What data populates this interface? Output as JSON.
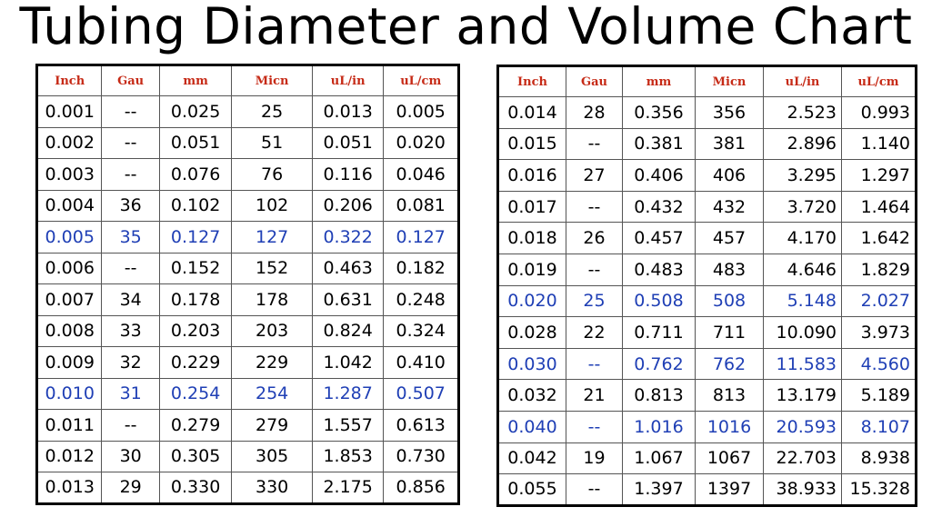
{
  "title": "Tubing Diameter and Volume Chart",
  "colors": {
    "header_text": "#c62a16",
    "highlight_text": "#1f3fb5",
    "normal_text": "#000000"
  },
  "columns": [
    "Inch",
    "Gau",
    "mm",
    "Micn",
    "uL/in",
    "uL/cm"
  ],
  "table_left": [
    {
      "inch": "0.001",
      "gau": "--",
      "mm": "0.025",
      "micn": "25",
      "ul_in": "0.013",
      "ul_cm": "0.005",
      "highlight": false
    },
    {
      "inch": "0.002",
      "gau": "--",
      "mm": "0.051",
      "micn": "51",
      "ul_in": "0.051",
      "ul_cm": "0.020",
      "highlight": false
    },
    {
      "inch": "0.003",
      "gau": "--",
      "mm": "0.076",
      "micn": "76",
      "ul_in": "0.116",
      "ul_cm": "0.046",
      "highlight": false
    },
    {
      "inch": "0.004",
      "gau": "36",
      "mm": "0.102",
      "micn": "102",
      "ul_in": "0.206",
      "ul_cm": "0.081",
      "highlight": false
    },
    {
      "inch": "0.005",
      "gau": "35",
      "mm": "0.127",
      "micn": "127",
      "ul_in": "0.322",
      "ul_cm": "0.127",
      "highlight": true
    },
    {
      "inch": "0.006",
      "gau": "--",
      "mm": "0.152",
      "micn": "152",
      "ul_in": "0.463",
      "ul_cm": "0.182",
      "highlight": false
    },
    {
      "inch": "0.007",
      "gau": "34",
      "mm": "0.178",
      "micn": "178",
      "ul_in": "0.631",
      "ul_cm": "0.248",
      "highlight": false
    },
    {
      "inch": "0.008",
      "gau": "33",
      "mm": "0.203",
      "micn": "203",
      "ul_in": "0.824",
      "ul_cm": "0.324",
      "highlight": false
    },
    {
      "inch": "0.009",
      "gau": "32",
      "mm": "0.229",
      "micn": "229",
      "ul_in": "1.042",
      "ul_cm": "0.410",
      "highlight": false
    },
    {
      "inch": "0.010",
      "gau": "31",
      "mm": "0.254",
      "micn": "254",
      "ul_in": "1.287",
      "ul_cm": "0.507",
      "highlight": true
    },
    {
      "inch": "0.011",
      "gau": "--",
      "mm": "0.279",
      "micn": "279",
      "ul_in": "1.557",
      "ul_cm": "0.613",
      "highlight": false
    },
    {
      "inch": "0.012",
      "gau": "30",
      "mm": "0.305",
      "micn": "305",
      "ul_in": "1.853",
      "ul_cm": "0.730",
      "highlight": false
    },
    {
      "inch": "0.013",
      "gau": "29",
      "mm": "0.330",
      "micn": "330",
      "ul_in": "2.175",
      "ul_cm": "0.856",
      "highlight": false
    }
  ],
  "table_right": [
    {
      "inch": "0.014",
      "gau": "28",
      "mm": "0.356",
      "micn": "356",
      "ul_in": "2.523",
      "ul_cm": "0.993",
      "highlight": false
    },
    {
      "inch": "0.015",
      "gau": "--",
      "mm": "0.381",
      "micn": "381",
      "ul_in": "2.896",
      "ul_cm": "1.140",
      "highlight": false
    },
    {
      "inch": "0.016",
      "gau": "27",
      "mm": "0.406",
      "micn": "406",
      "ul_in": "3.295",
      "ul_cm": "1.297",
      "highlight": false
    },
    {
      "inch": "0.017",
      "gau": "--",
      "mm": "0.432",
      "micn": "432",
      "ul_in": "3.720",
      "ul_cm": "1.464",
      "highlight": false
    },
    {
      "inch": "0.018",
      "gau": "26",
      "mm": "0.457",
      "micn": "457",
      "ul_in": "4.170",
      "ul_cm": "1.642",
      "highlight": false
    },
    {
      "inch": "0.019",
      "gau": "--",
      "mm": "0.483",
      "micn": "483",
      "ul_in": "4.646",
      "ul_cm": "1.829",
      "highlight": false
    },
    {
      "inch": "0.020",
      "gau": "25",
      "mm": "0.508",
      "micn": "508",
      "ul_in": "5.148",
      "ul_cm": "2.027",
      "highlight": true
    },
    {
      "inch": "0.028",
      "gau": "22",
      "mm": "0.711",
      "micn": "711",
      "ul_in": "10.090",
      "ul_cm": "3.973",
      "highlight": false
    },
    {
      "inch": "0.030",
      "gau": "--",
      "mm": "0.762",
      "micn": "762",
      "ul_in": "11.583",
      "ul_cm": "4.560",
      "highlight": true
    },
    {
      "inch": "0.032",
      "gau": "21",
      "mm": "0.813",
      "micn": "813",
      "ul_in": "13.179",
      "ul_cm": "5.189",
      "highlight": false
    },
    {
      "inch": "0.040",
      "gau": "--",
      "mm": "1.016",
      "micn": "1016",
      "ul_in": "20.593",
      "ul_cm": "8.107",
      "highlight": true
    },
    {
      "inch": "0.042",
      "gau": "19",
      "mm": "1.067",
      "micn": "1067",
      "ul_in": "22.703",
      "ul_cm": "8.938",
      "highlight": false
    },
    {
      "inch": "0.055",
      "gau": "--",
      "mm": "1.397",
      "micn": "1397",
      "ul_in": "38.933",
      "ul_cm": "15.328",
      "highlight": false
    }
  ]
}
